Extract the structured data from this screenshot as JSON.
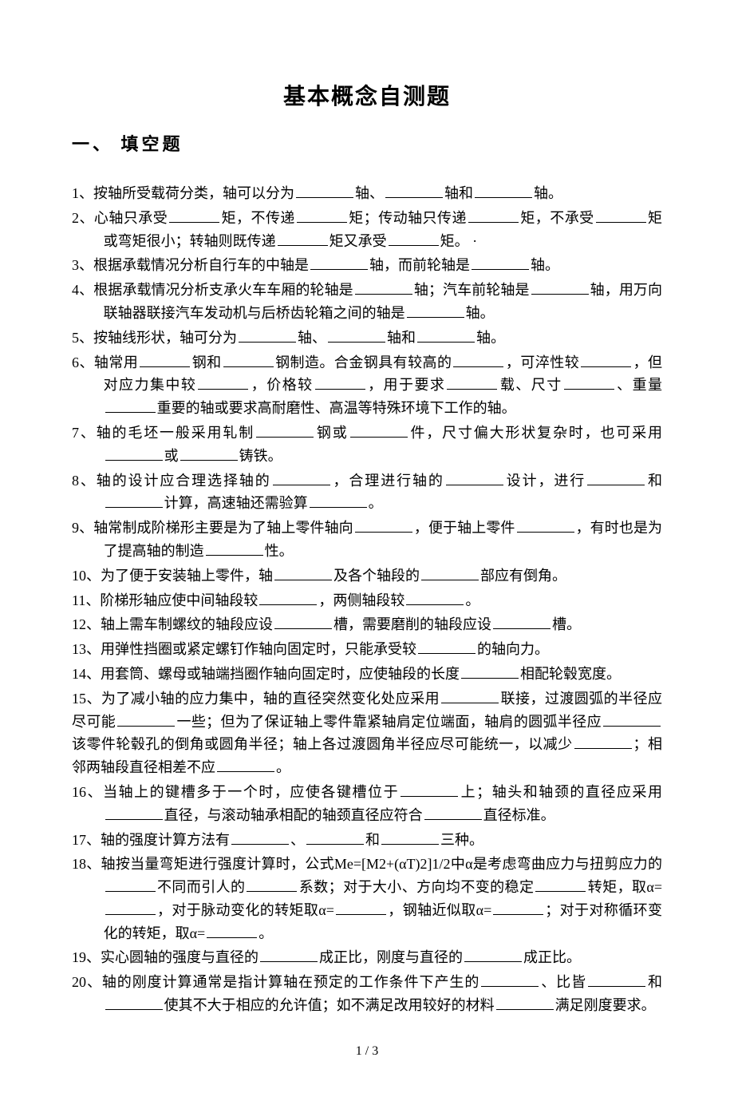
{
  "title": "基本概念自测题",
  "section_header": "一、 填空题",
  "page_number": "1 / 3",
  "questions": {
    "q1": {
      "num": "1、",
      "text_parts": [
        "按轴所受载荷分类，轴可以分为",
        "轴、",
        "轴和",
        "轴。"
      ]
    },
    "q2": {
      "num": "2、",
      "text_parts": [
        "心轴只承受",
        "矩，不传递",
        "矩；传动轴只传递",
        "矩，不承受",
        "矩或弯矩很小；转轴则既传递",
        "矩又承受",
        "矩。 ·"
      ]
    },
    "q3": {
      "num": "3、",
      "text_parts": [
        "根据承载情况分析自行车的中轴是",
        "轴，而前轮轴是",
        "轴。"
      ]
    },
    "q4": {
      "num": "4、",
      "text_parts": [
        "根据承载情况分析支承火车车厢的轮轴是",
        "轴；汽车前轮轴是",
        "轴，用万向联轴器联接汽车发动机与后桥齿轮箱之间的轴是",
        "轴。"
      ]
    },
    "q5": {
      "num": "5、",
      "text_parts": [
        "按轴线形状，轴可分为",
        "轴、",
        "轴和",
        "轴。"
      ]
    },
    "q6": {
      "num": "6、",
      "text_parts": [
        "轴常用",
        "钢和",
        "钢制造。合金钢具有较高的",
        "，可淬性较",
        "，但对应力集中较",
        "，价格较",
        "，用于要求",
        "载、尺寸",
        "、重量",
        "重要的轴或要求高耐磨性、高温等特殊环境下工作的轴。"
      ]
    },
    "q7": {
      "num": "7、",
      "text_parts": [
        "轴的毛坯一般采用轧制",
        "钢或",
        "件，尺寸偏大形状复杂时，也可采用",
        "或",
        "铸铁。"
      ]
    },
    "q8": {
      "num": "8、",
      "text_parts": [
        "轴的设计应合理选择轴的",
        "，合理进行轴的",
        "设计，进行",
        "和",
        "计算，高速轴还需验算",
        "。"
      ]
    },
    "q9": {
      "num": "9、",
      "text_parts": [
        "轴常制成阶梯形主要是为了轴上零件轴向",
        "，便于轴上零件",
        "，有时也是为了提高轴的制造",
        "性。"
      ]
    },
    "q10": {
      "num": "10、",
      "text_parts": [
        "为了便于安装轴上零件，轴",
        "及各个轴段的",
        "部应有倒角。"
      ]
    },
    "q11": {
      "num": "11、",
      "text_parts": [
        "阶梯形轴应使中间轴段较",
        "，两侧轴段较",
        "。"
      ]
    },
    "q12": {
      "num": "12、",
      "text_parts": [
        "轴上需车制螺纹的轴段应设",
        "槽，需要磨削的轴段应设",
        "槽。"
      ]
    },
    "q13": {
      "num": "13、",
      "text_parts": [
        "用弹性挡圈或紧定螺钉作轴向固定时，只能承受较",
        "的轴向力。"
      ]
    },
    "q14": {
      "num": "14、",
      "text_parts": [
        "用套筒、螺母或轴端挡圈作轴向固定时，应使轴段的长度",
        "相配轮毂宽度。"
      ]
    },
    "q15": {
      "num": "15、",
      "text_parts": [
        "为了减小轴的应力集中，轴的直径突然变化处应采用",
        "联接，过渡圆弧的半径应尽可能",
        "一些；但为了保证轴上零件靠紧轴肩定位端面，轴肩的圆弧半径应",
        "该零件轮毂孔的倒角或圆角半径；轴上各过渡圆角半径应尽可能统一，以减少",
        "；相邻两轴段直径相差不应",
        "。"
      ]
    },
    "q16": {
      "num": "16、",
      "text_parts": [
        "当轴上的键槽多于一个时，应使各键槽位于",
        "上；轴头和轴颈的直径应采用",
        "直径，与滚动轴承相配的轴颈直径应符合",
        "直径标准。"
      ]
    },
    "q17": {
      "num": "17、",
      "text_parts": [
        "轴的强度计算方法有",
        "、",
        "和",
        "三种。"
      ]
    },
    "q18": {
      "num": "18、",
      "text_parts": [
        "轴按当量弯矩进行强度计算时，公式Me=[M2+(αT)2]1/2中α是考虑弯曲应力与扭剪应力的",
        "不同而引人的",
        "系数；对于大小、方向均不变的稳定",
        "转矩，取α=",
        "，对于脉动变化的转矩取α=",
        "，钢轴近似取α=",
        "；对于对称循环变化的转矩，取α=",
        "。"
      ]
    },
    "q19": {
      "num": "19、",
      "text_parts": [
        "实心圆轴的强度与直径的",
        "成正比，刚度与直径的",
        "成正比。"
      ]
    },
    "q20": {
      "num": "20、",
      "text_parts": [
        "轴的刚度计算通常是指计算轴在预定的工作条件下产生的",
        "、比皆",
        "和",
        "使其不大于相应的允许值；如不满足改用较好的材料",
        "满足刚度要求。"
      ]
    }
  }
}
